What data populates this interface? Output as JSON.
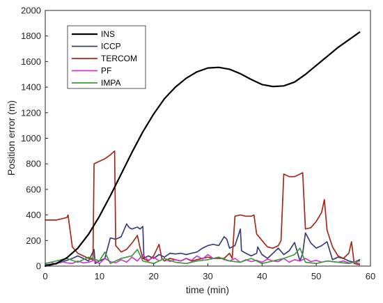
{
  "chart_data": {
    "type": "line",
    "xlabel": "time (min)",
    "ylabel": "Position error (m)",
    "xlim": [
      0,
      60
    ],
    "ylim": [
      0,
      2000
    ],
    "xticks": [
      "0",
      "10",
      "20",
      "30",
      "40",
      "50",
      "60"
    ],
    "yticks": [
      "0",
      "200",
      "400",
      "600",
      "800",
      "1000",
      "1200",
      "1400",
      "1600",
      "1800",
      "2000"
    ],
    "grid": false,
    "legend_position": "top-left",
    "series": [
      {
        "name": "INS",
        "color": "#000000",
        "x": [
          0,
          2,
          4,
          6,
          8,
          10,
          12,
          14,
          16,
          18,
          20,
          22,
          24,
          26,
          28,
          30,
          32,
          34,
          36,
          38,
          40,
          42,
          44,
          46,
          48,
          50,
          52,
          54,
          56,
          58
        ],
        "y": [
          0,
          20,
          65,
          140,
          250,
          390,
          550,
          720,
          890,
          1050,
          1190,
          1310,
          1400,
          1470,
          1520,
          1550,
          1555,
          1540,
          1505,
          1460,
          1420,
          1405,
          1410,
          1440,
          1500,
          1570,
          1640,
          1710,
          1770,
          1830
        ]
      },
      {
        "name": "ICCP",
        "color": "#3b3f7a",
        "x": [
          0,
          2,
          3,
          4,
          5,
          6,
          7,
          8,
          9,
          9.2,
          10,
          11,
          12,
          12.5,
          13,
          14,
          15,
          15.5,
          16,
          17,
          17.5,
          18,
          18.2,
          19,
          20,
          21,
          22,
          23,
          24,
          25,
          26,
          27,
          28,
          29,
          30,
          31,
          32,
          33,
          33.5,
          34,
          35,
          36,
          36.2,
          37,
          38,
          39,
          39.2,
          40,
          41,
          42,
          43,
          44,
          45,
          46,
          47,
          47.5,
          48,
          49,
          50,
          51,
          52,
          53,
          54,
          55,
          56,
          57,
          58
        ],
        "y": [
          10,
          20,
          30,
          45,
          60,
          80,
          60,
          40,
          130,
          20,
          40,
          60,
          220,
          215,
          210,
          230,
          330,
          300,
          290,
          305,
          290,
          310,
          60,
          80,
          60,
          90,
          70,
          100,
          95,
          100,
          90,
          100,
          110,
          140,
          160,
          170,
          160,
          230,
          210,
          140,
          160,
          290,
          120,
          100,
          80,
          100,
          150,
          90,
          60,
          100,
          140,
          90,
          120,
          185,
          40,
          100,
          260,
          180,
          140,
          160,
          190,
          50,
          70,
          60,
          40,
          30,
          50
        ]
      },
      {
        "name": "TERCOM",
        "color": "#a52a1a",
        "x": [
          0,
          2,
          4,
          4.2,
          5,
          6,
          7,
          8,
          8.8,
          9,
          10,
          11,
          12,
          12.8,
          13,
          14,
          15,
          16,
          17,
          17.5,
          18,
          19,
          20,
          21,
          21.5,
          22,
          23,
          24,
          25,
          26,
          27,
          28,
          29,
          30,
          31,
          32,
          33,
          34,
          34.5,
          35,
          36,
          37,
          38,
          38.5,
          39,
          40,
          41,
          42,
          43,
          43.5,
          44,
          45,
          46,
          47,
          47.5,
          48,
          49,
          50,
          51,
          51.5,
          52,
          53,
          54,
          55,
          56,
          56.5,
          57,
          58
        ],
        "y": [
          360,
          360,
          380,
          400,
          150,
          100,
          80,
          60,
          50,
          800,
          820,
          840,
          870,
          900,
          160,
          110,
          130,
          180,
          240,
          140,
          60,
          40,
          80,
          170,
          60,
          40,
          60,
          50,
          40,
          60,
          40,
          50,
          60,
          70,
          60,
          60,
          60,
          100,
          60,
          390,
          400,
          390,
          390,
          400,
          250,
          200,
          150,
          140,
          160,
          200,
          720,
          700,
          700,
          720,
          730,
          290,
          300,
          350,
          420,
          520,
          280,
          150,
          80,
          60,
          100,
          190,
          20,
          10
        ]
      },
      {
        "name": "PF",
        "color": "#cc33cc",
        "x": [
          0,
          1,
          2,
          3,
          4,
          5,
          6,
          7,
          8,
          9,
          10,
          11,
          12,
          13,
          14,
          15,
          16,
          17,
          18,
          19,
          20,
          21,
          22,
          23,
          24,
          25,
          26,
          27,
          28,
          29,
          30,
          31,
          32,
          33,
          34,
          35,
          36,
          37,
          38,
          39,
          40,
          41,
          42,
          43,
          44,
          45,
          46,
          47,
          48,
          49,
          50,
          51,
          52,
          53,
          54,
          55,
          56,
          57,
          58
        ],
        "y": [
          20,
          30,
          15,
          35,
          25,
          20,
          40,
          25,
          30,
          45,
          20,
          60,
          35,
          25,
          50,
          30,
          70,
          40,
          90,
          45,
          70,
          40,
          60,
          35,
          50,
          40,
          60,
          45,
          80,
          55,
          90,
          60,
          70,
          50,
          40,
          60,
          30,
          50,
          35,
          45,
          30,
          55,
          40,
          35,
          60,
          30,
          50,
          40,
          60,
          35,
          45,
          30,
          40,
          35,
          30,
          40,
          25,
          30,
          20
        ]
      },
      {
        "name": "IMPA",
        "color": "#3f9a3f",
        "x": [
          0,
          2,
          4,
          6,
          8,
          10,
          11,
          12,
          14,
          16,
          17,
          18,
          20,
          22,
          24,
          26,
          28,
          30,
          32,
          34,
          36,
          38,
          40,
          42,
          44,
          46,
          47,
          48,
          50,
          52,
          54,
          56,
          58
        ],
        "y": [
          20,
          40,
          60,
          30,
          70,
          40,
          110,
          20,
          60,
          80,
          130,
          40,
          20,
          60,
          30,
          20,
          40,
          50,
          70,
          40,
          30,
          60,
          20,
          40,
          60,
          90,
          140,
          30,
          20,
          40,
          30,
          20,
          40
        ]
      }
    ]
  }
}
